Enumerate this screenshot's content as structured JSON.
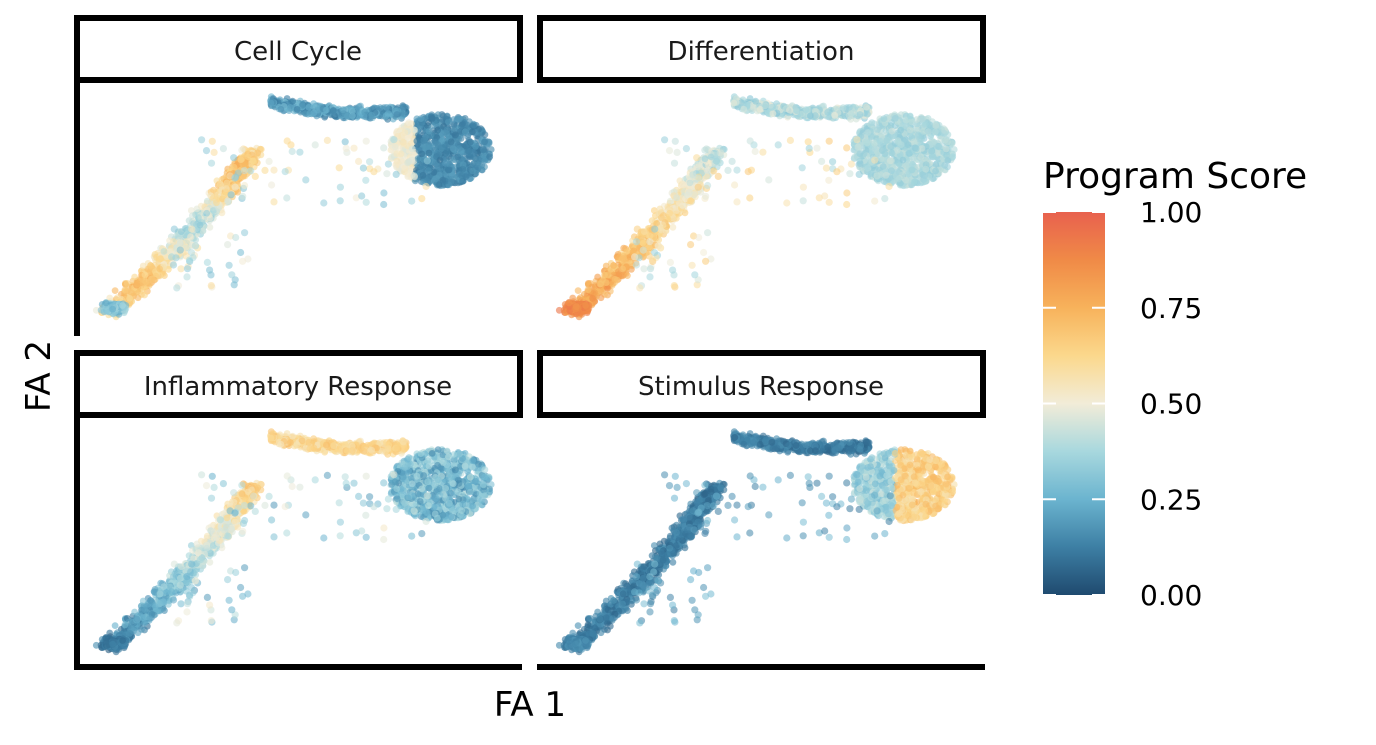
{
  "chart_data": {
    "type": "scatter",
    "subtype": "faceted force-atlas embedding colored by program score",
    "xlabel": "FA 1",
    "ylabel": "FA 2",
    "facets": [
      {
        "title": "Cell Cycle",
        "profile": "cell_cycle"
      },
      {
        "title": "Differentiation",
        "profile": "differentiation"
      },
      {
        "title": "Inflammatory Response",
        "profile": "inflammatory"
      },
      {
        "title": "Stimulus Response",
        "profile": "stimulus"
      }
    ],
    "legend": {
      "title": "Program Score",
      "placement": "right",
      "ticks": [
        "0.00",
        "0.25",
        "0.50",
        "0.75",
        "1.00"
      ],
      "range": [
        0,
        1
      ],
      "colors": [
        "#1F4A6F",
        "#3D7FA4",
        "#6BB4CF",
        "#A8D8DE",
        "#F2ECD8",
        "#FBD88C",
        "#F7B25B",
        "#F08A47",
        "#E8614E"
      ]
    },
    "grid": false
  }
}
